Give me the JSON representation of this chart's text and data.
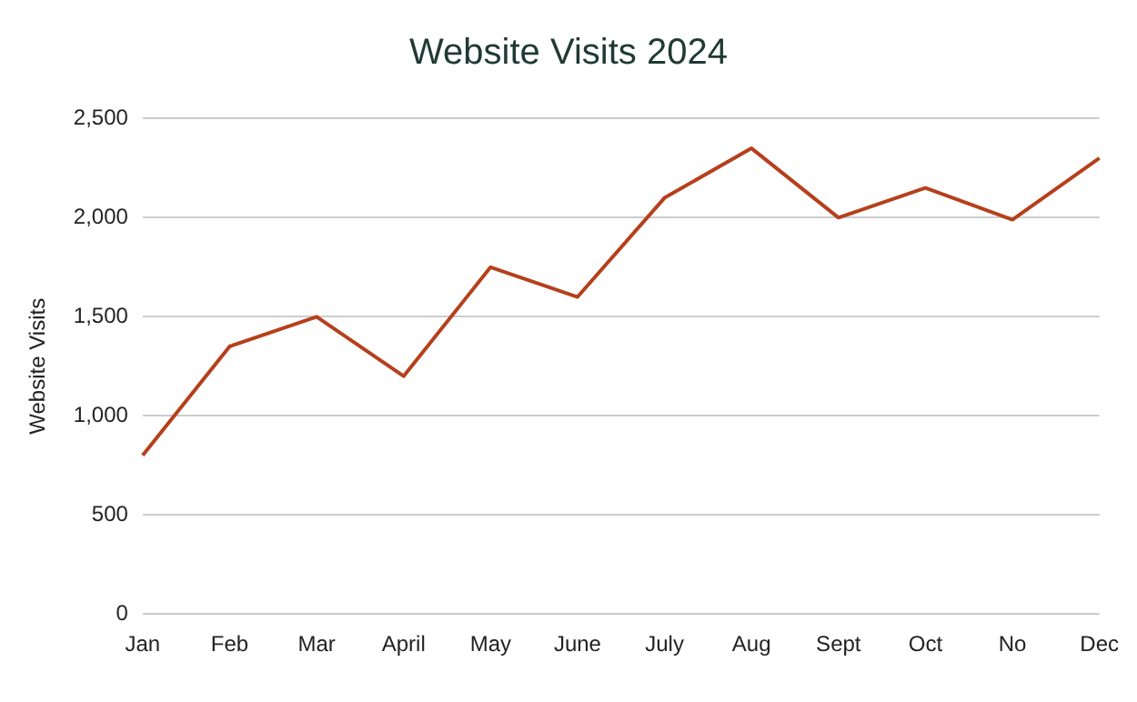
{
  "chart_data": {
    "type": "line",
    "title": "Website Visits 2024",
    "ylabel": "Website Visits",
    "categories": [
      "Jan",
      "Feb",
      "Mar",
      "April",
      "May",
      "June",
      "July",
      "Aug",
      "Sept",
      "Oct",
      "No",
      "Dec"
    ],
    "series": [
      {
        "color": "#b5401c",
        "values": [
          800,
          1350,
          1500,
          1200,
          1750,
          1600,
          2100,
          2350,
          2000,
          2150,
          1990,
          2300
        ]
      }
    ],
    "ylim": [
      0,
      2500
    ],
    "yticks": [
      {
        "value": 0,
        "label": "0"
      },
      {
        "value": 500,
        "label": "500"
      },
      {
        "value": 1000,
        "label": "1,000"
      },
      {
        "value": 1500,
        "label": "1,500"
      },
      {
        "value": 2000,
        "label": "2,000"
      },
      {
        "value": 2500,
        "label": "2,500"
      }
    ],
    "grid": "y",
    "legend": false,
    "marker": "none",
    "line_style": "solid"
  }
}
